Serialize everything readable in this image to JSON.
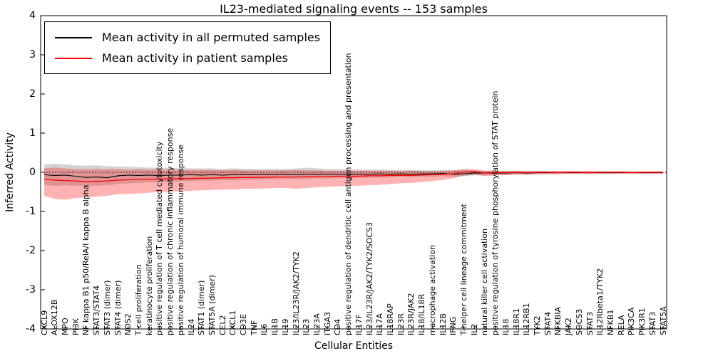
{
  "figure": {
    "title": "IL23-mediated signaling events -- 153 samples",
    "xlabel": "Cellular Entities",
    "ylabel": "Inferred Activity"
  },
  "legend": {
    "items": [
      {
        "label": "Mean activity in all permuted samples",
        "color": "#000000"
      },
      {
        "label": "Mean activity in patient samples",
        "color": "#ff0000"
      }
    ]
  },
  "chart_data": {
    "type": "line",
    "title": "IL23-mediated signaling events -- 153 samples",
    "xlabel": "Cellular Entities",
    "ylabel": "Inferred Activity",
    "ylim": [
      -4,
      4
    ],
    "yticks": [
      4,
      3,
      2,
      1,
      0,
      -1,
      -2,
      -3,
      -4
    ],
    "zero_line": 0,
    "grid": false,
    "legend_position": "upper left",
    "categories": [
      "CXCL9",
      "ALOX12B",
      "MPO",
      "PI3K",
      "NF kappa B1 p50/RelA/I kappa B alpha",
      "STAT3/STAT4",
      "STAT3 (dimer)",
      "STAT4 (dimer)",
      "NOS2",
      "T cell proliferation",
      "keratinocyte proliferation",
      "positive regulation of T cell mediated cytotoxicity",
      "positive regulation of chronic inflammatory response",
      "positive regulation of humoral immune response",
      "IL24",
      "STAT1 (dimer)",
      "STAT5A (dimer)",
      "CCL2",
      "CXCL1",
      "CD3E",
      "TNF",
      "IL6",
      "IL1B",
      "IL19",
      "IL23/IL23R/JAK2/TYK2",
      "IL23",
      "IL23A",
      "ITGA3",
      "CD4",
      "positive regulation of dendritic cell antigen processing and presentation",
      "IL17F",
      "IL23/IL23R/JAK2/TYK2/SOCS3",
      "IL17A",
      "IL18RAP",
      "IL23R",
      "IL23R/JAK2",
      "IL18/IL18R",
      "macrophage activation",
      "IL12B",
      "IFNG",
      "T-helper cell lineage commitment",
      "IL2",
      "natural killer cell activation",
      "positive regulation of tyrosine phosphorylation of STAT protein",
      "IL18",
      "IL18R1",
      "IL12RB1",
      "TYK2",
      "STAT4",
      "NFKBIA",
      "JAK2",
      "SOCS3",
      "STAT3",
      "IL12Rbeta1/TYK2",
      "NFKB1",
      "RELA",
      "PIK3CA",
      "PIK3R1",
      "STAT3",
      "STAT5A"
    ],
    "series": [
      {
        "name": "Mean activity in all permuted samples",
        "color": "#000000",
        "band_color": "rgba(128,128,128,0.35)",
        "values": [
          -0.06,
          -0.08,
          -0.07,
          -0.1,
          -0.13,
          -0.12,
          -0.14,
          -0.09,
          -0.07,
          -0.08,
          -0.07,
          -0.08,
          -0.07,
          -0.07,
          -0.06,
          -0.07,
          -0.06,
          -0.07,
          -0.06,
          -0.06,
          -0.06,
          -0.05,
          -0.06,
          -0.05,
          -0.06,
          -0.05,
          -0.05,
          -0.05,
          -0.05,
          -0.05,
          -0.05,
          -0.05,
          -0.04,
          -0.05,
          -0.04,
          -0.05,
          -0.04,
          -0.04,
          -0.03,
          -0.05,
          -0.04,
          -0.02,
          -0.02,
          -0.02,
          -0.02,
          -0.01,
          -0.02,
          -0.01,
          -0.01,
          -0.01,
          -0.01,
          -0.01,
          -0.01,
          -0.01,
          -0.01,
          -0.01,
          -0.01,
          -0.01,
          -0.01,
          -0.01
        ],
        "band_upper": [
          0.2,
          0.22,
          0.2,
          0.18,
          0.17,
          0.18,
          0.16,
          0.15,
          0.14,
          0.13,
          0.12,
          0.12,
          0.11,
          0.11,
          0.1,
          0.1,
          0.1,
          0.09,
          0.1,
          0.09,
          0.09,
          0.08,
          0.09,
          0.08,
          0.1,
          0.12,
          0.1,
          0.09,
          0.08,
          0.08,
          0.07,
          0.07,
          0.07,
          0.06,
          0.06,
          0.06,
          0.05,
          0.05,
          0.05,
          0.05,
          0.06,
          0.05,
          0.04,
          0.04,
          0.04,
          0.04,
          0.03,
          0.03,
          0.03,
          0.03,
          0.03,
          0.03,
          0.03,
          0.03,
          0.02,
          0.02,
          0.02,
          0.02,
          0.02,
          0.02
        ],
        "band_lower": [
          -0.32,
          -0.35,
          -0.33,
          -0.34,
          -0.36,
          -0.34,
          -0.33,
          -0.3,
          -0.28,
          -0.27,
          -0.26,
          -0.25,
          -0.24,
          -0.23,
          -0.22,
          -0.21,
          -0.21,
          -0.2,
          -0.2,
          -0.19,
          -0.19,
          -0.18,
          -0.18,
          -0.17,
          -0.18,
          -0.17,
          -0.16,
          -0.16,
          -0.15,
          -0.15,
          -0.14,
          -0.14,
          -0.13,
          -0.13,
          -0.12,
          -0.12,
          -0.11,
          -0.11,
          -0.1,
          -0.11,
          -0.1,
          -0.08,
          -0.08,
          -0.07,
          -0.07,
          -0.06,
          -0.06,
          -0.05,
          -0.05,
          -0.05,
          -0.04,
          -0.04,
          -0.04,
          -0.04,
          -0.04,
          -0.03,
          -0.03,
          -0.03,
          -0.03,
          -0.03
        ]
      },
      {
        "name": "Mean activity in patient samples",
        "color": "#ff0000",
        "band_color": "rgba(255,0,0,0.30)",
        "values": [
          -0.18,
          -0.2,
          -0.21,
          -0.22,
          -0.24,
          -0.23,
          -0.22,
          -0.2,
          -0.19,
          -0.18,
          -0.18,
          -0.17,
          -0.17,
          -0.16,
          -0.16,
          -0.15,
          -0.15,
          -0.14,
          -0.14,
          -0.13,
          -0.13,
          -0.13,
          -0.12,
          -0.12,
          -0.12,
          -0.11,
          -0.11,
          -0.11,
          -0.1,
          -0.1,
          -0.1,
          -0.09,
          -0.09,
          -0.08,
          -0.08,
          -0.08,
          -0.07,
          -0.06,
          -0.05,
          -0.04,
          0.01,
          0.02,
          -0.02,
          -0.01,
          -0.01,
          0.0,
          -0.01,
          0.0,
          0.0,
          -0.01,
          0.0,
          0.0,
          -0.01,
          0.0,
          0.0,
          0.0,
          -0.01,
          0.0,
          0.0,
          0.0
        ],
        "band_upper": [
          0.1,
          0.12,
          0.1,
          0.08,
          0.08,
          0.09,
          0.08,
          0.08,
          0.07,
          0.08,
          0.07,
          0.07,
          0.07,
          0.06,
          0.06,
          0.06,
          0.06,
          0.05,
          0.06,
          0.05,
          0.05,
          0.05,
          0.05,
          0.05,
          0.06,
          0.05,
          0.05,
          0.04,
          0.04,
          0.04,
          0.04,
          0.04,
          0.04,
          0.04,
          0.03,
          0.04,
          0.03,
          0.03,
          0.04,
          0.05,
          0.09,
          0.08,
          0.04,
          0.04,
          0.03,
          0.03,
          0.03,
          0.03,
          0.03,
          0.03,
          0.03,
          0.02,
          0.03,
          0.02,
          0.02,
          0.03,
          0.02,
          0.02,
          0.02,
          0.02
        ],
        "band_lower": [
          -0.6,
          -0.68,
          -0.7,
          -0.66,
          -0.64,
          -0.62,
          -0.6,
          -0.56,
          -0.55,
          -0.54,
          -0.52,
          -0.5,
          -0.5,
          -0.48,
          -0.47,
          -0.46,
          -0.45,
          -0.44,
          -0.44,
          -0.42,
          -0.42,
          -0.41,
          -0.4,
          -0.4,
          -0.42,
          -0.4,
          -0.38,
          -0.37,
          -0.36,
          -0.35,
          -0.34,
          -0.33,
          -0.32,
          -0.3,
          -0.28,
          -0.27,
          -0.25,
          -0.22,
          -0.2,
          -0.15,
          -0.08,
          -0.06,
          -0.1,
          -0.08,
          -0.07,
          -0.06,
          -0.06,
          -0.05,
          -0.05,
          -0.05,
          -0.04,
          -0.04,
          -0.05,
          -0.04,
          -0.04,
          -0.04,
          -0.04,
          -0.04,
          -0.04,
          -0.04
        ]
      }
    ]
  }
}
